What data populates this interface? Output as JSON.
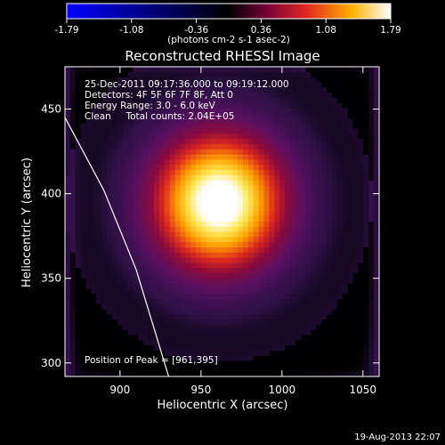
{
  "chart_data": {
    "type": "heatmap",
    "title": "Reconstructed RHESSI Image",
    "xlabel": "Heliocentric X (arcsec)",
    "ylabel": "Heliocentric Y (arcsec)",
    "xlim": [
      866,
      1060
    ],
    "ylim": [
      292,
      475
    ],
    "x_ticks": [
      900,
      950,
      1000,
      1050
    ],
    "y_ticks": [
      300,
      350,
      400,
      450
    ],
    "colorbar": {
      "label": "(photons cm-2 s-1 asec-2)",
      "range": [
        -1.79,
        1.79
      ],
      "ticks": [
        "-1.79",
        "-1.08",
        "-0.36",
        "0.36",
        "1.08",
        "1.79"
      ]
    },
    "source_peak": [
      961,
      395
    ],
    "limb_line": [
      [
        866,
        445
      ],
      [
        890,
        402
      ],
      [
        910,
        355
      ],
      [
        930,
        292
      ]
    ],
    "annotations": [
      "25-Dec-2011 09:17:36.000 to 09:19:12.000",
      "Detectors: 4F 5F 6F 7F 8F, Att 0",
      "Energy Range: 3.0 - 6.0 keV",
      "Clean     Total counts: 2.04E+05"
    ],
    "peak_text": "Position of Peak = [961,395]",
    "footer": "19-Aug-2013 22:07"
  }
}
